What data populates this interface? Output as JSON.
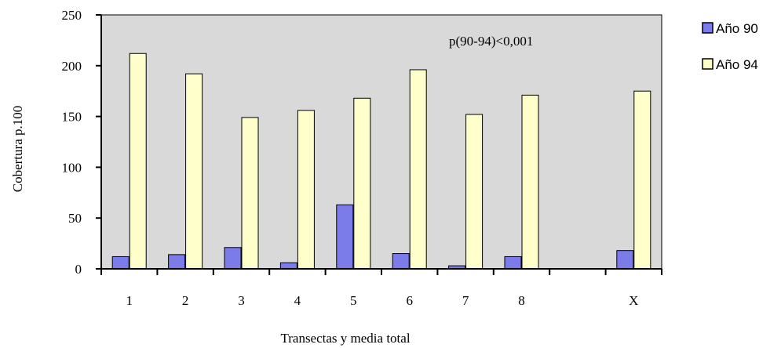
{
  "chart_data": {
    "type": "bar",
    "title": "",
    "xlabel": "Transectas y media total",
    "ylabel": "Cobertura p.100",
    "ylim": [
      0,
      250
    ],
    "yticks": [
      "0",
      "50",
      "100",
      "150",
      "200",
      "250"
    ],
    "categories": [
      "1",
      "2",
      "3",
      "4",
      "5",
      "6",
      "7",
      "8",
      "",
      "X"
    ],
    "series": [
      {
        "name": "Año 90",
        "color": "#7b7bea",
        "values": [
          12,
          14,
          21,
          6,
          63,
          15,
          3,
          12,
          null,
          18
        ]
      },
      {
        "name": "Año 94",
        "color": "#ffffcc",
        "values": [
          212,
          192,
          149,
          156,
          168,
          196,
          152,
          171,
          null,
          175
        ]
      }
    ],
    "annotation": "p(90-94)<0,001",
    "grid": false,
    "plot_background": "#d9d9d9",
    "legend_position": "right"
  }
}
